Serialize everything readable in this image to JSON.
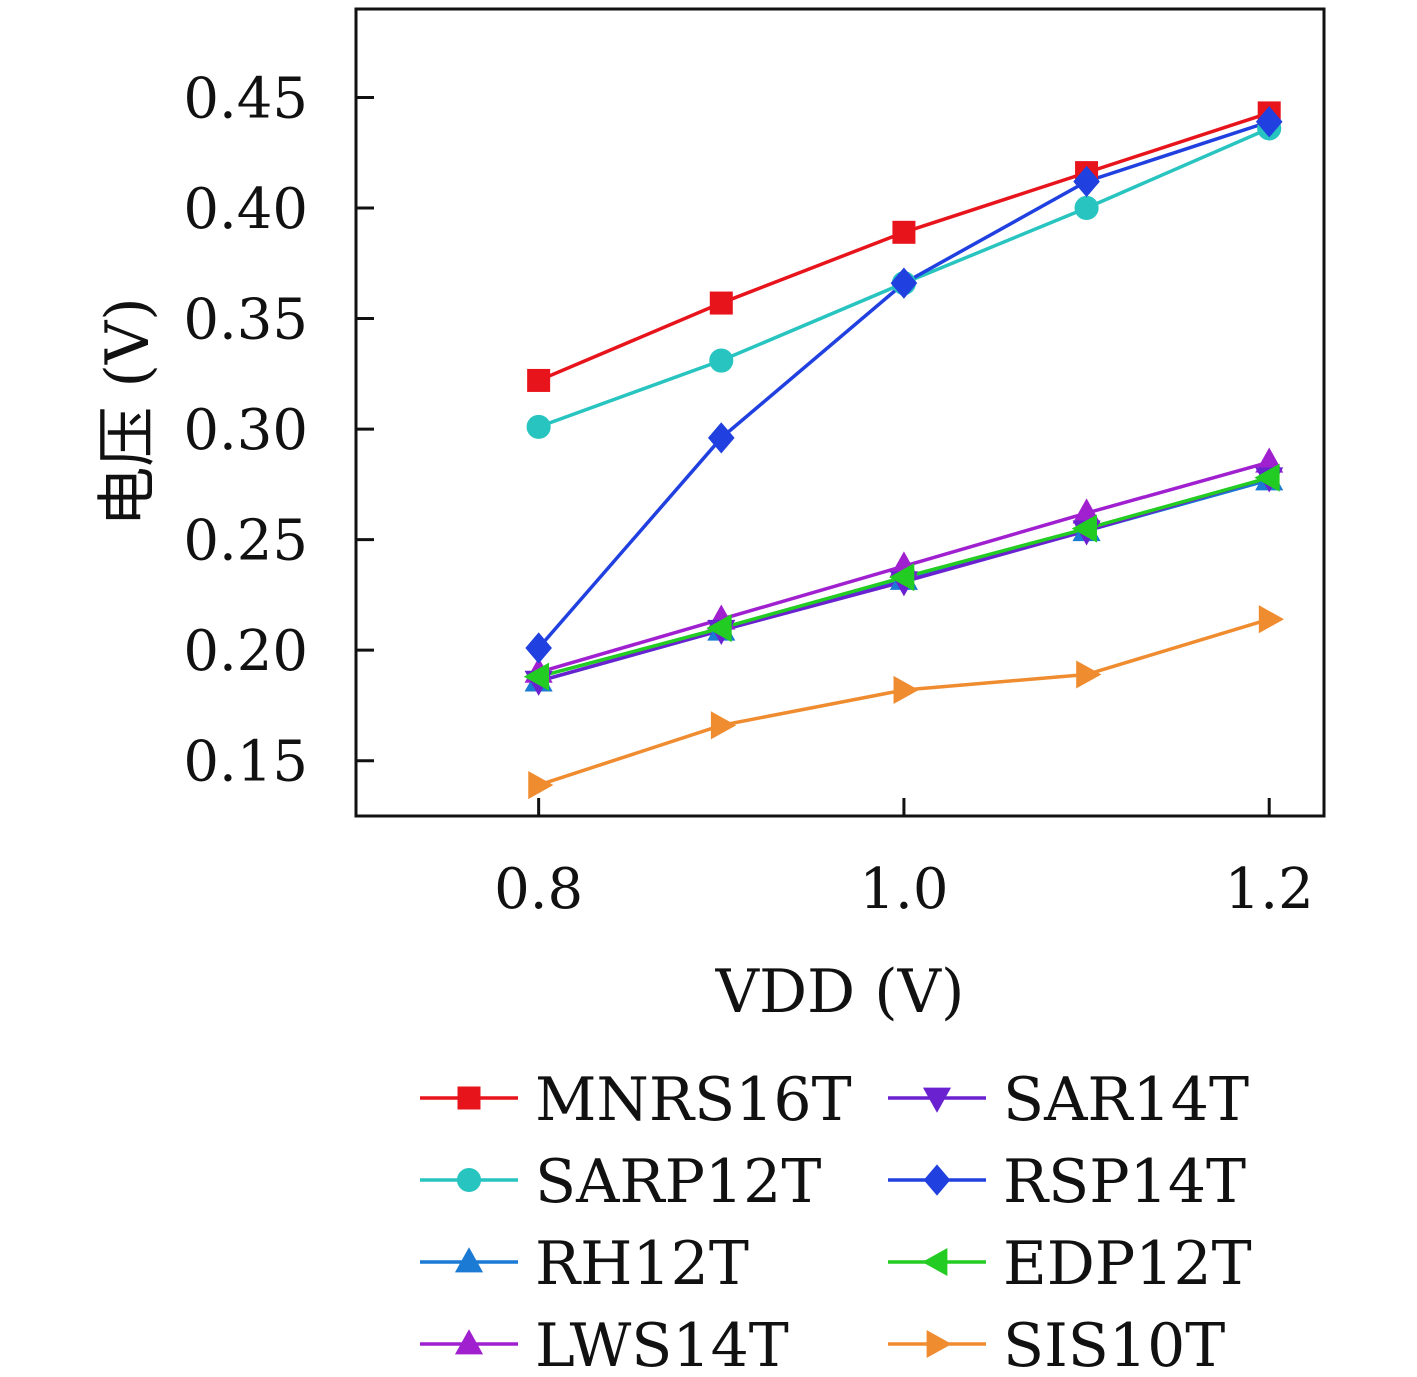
{
  "chart_data": {
    "type": "line",
    "xlabel": "VDD (V)",
    "ylabel": "电压 (V)",
    "xlim": [
      0.7,
      1.23
    ],
    "ylim": [
      0.125,
      0.49
    ],
    "x_ticks": [
      0.8,
      1.0,
      1.2
    ],
    "x_tick_labels": [
      "0.8",
      "1.0",
      "1.2"
    ],
    "y_ticks": [
      0.15,
      0.2,
      0.25,
      0.3,
      0.35,
      0.4,
      0.45
    ],
    "y_tick_labels": [
      "0.15",
      "0.20",
      "0.25",
      "0.30",
      "0.35",
      "0.40",
      "0.45"
    ],
    "x": [
      0.8,
      0.9,
      1.0,
      1.1,
      1.2
    ],
    "grid": false,
    "legend_position": "bottom",
    "series": [
      {
        "name": "MNRS16T",
        "color": "#e8141c",
        "marker": "square",
        "values": [
          0.322,
          0.357,
          0.389,
          0.416,
          0.443
        ]
      },
      {
        "name": "SARP12T",
        "color": "#28c4c0",
        "marker": "circle",
        "values": [
          0.301,
          0.331,
          0.366,
          0.4,
          0.436
        ]
      },
      {
        "name": "RH12T",
        "color": "#1a7ad4",
        "marker": "triangle-up",
        "values": [
          0.186,
          0.209,
          0.232,
          0.254,
          0.277
        ]
      },
      {
        "name": "LWS14T",
        "color": "#a020d0",
        "marker": "triangle-up",
        "values": [
          0.19,
          0.214,
          0.238,
          0.262,
          0.285
        ]
      },
      {
        "name": "SAR14T",
        "color": "#6a22d0",
        "marker": "triangle-down",
        "values": [
          0.186,
          0.209,
          0.231,
          0.254,
          0.278
        ]
      },
      {
        "name": "RSP14T",
        "color": "#2040e0",
        "marker": "diamond",
        "values": [
          0.201,
          0.296,
          0.366,
          0.412,
          0.439
        ]
      },
      {
        "name": "EDP12T",
        "color": "#22cc22",
        "marker": "triangle-left",
        "values": [
          0.188,
          0.21,
          0.233,
          0.255,
          0.278
        ]
      },
      {
        "name": "SIS10T",
        "color": "#f08c30",
        "marker": "triangle-right",
        "values": [
          0.139,
          0.166,
          0.182,
          0.189,
          0.214
        ]
      }
    ]
  }
}
